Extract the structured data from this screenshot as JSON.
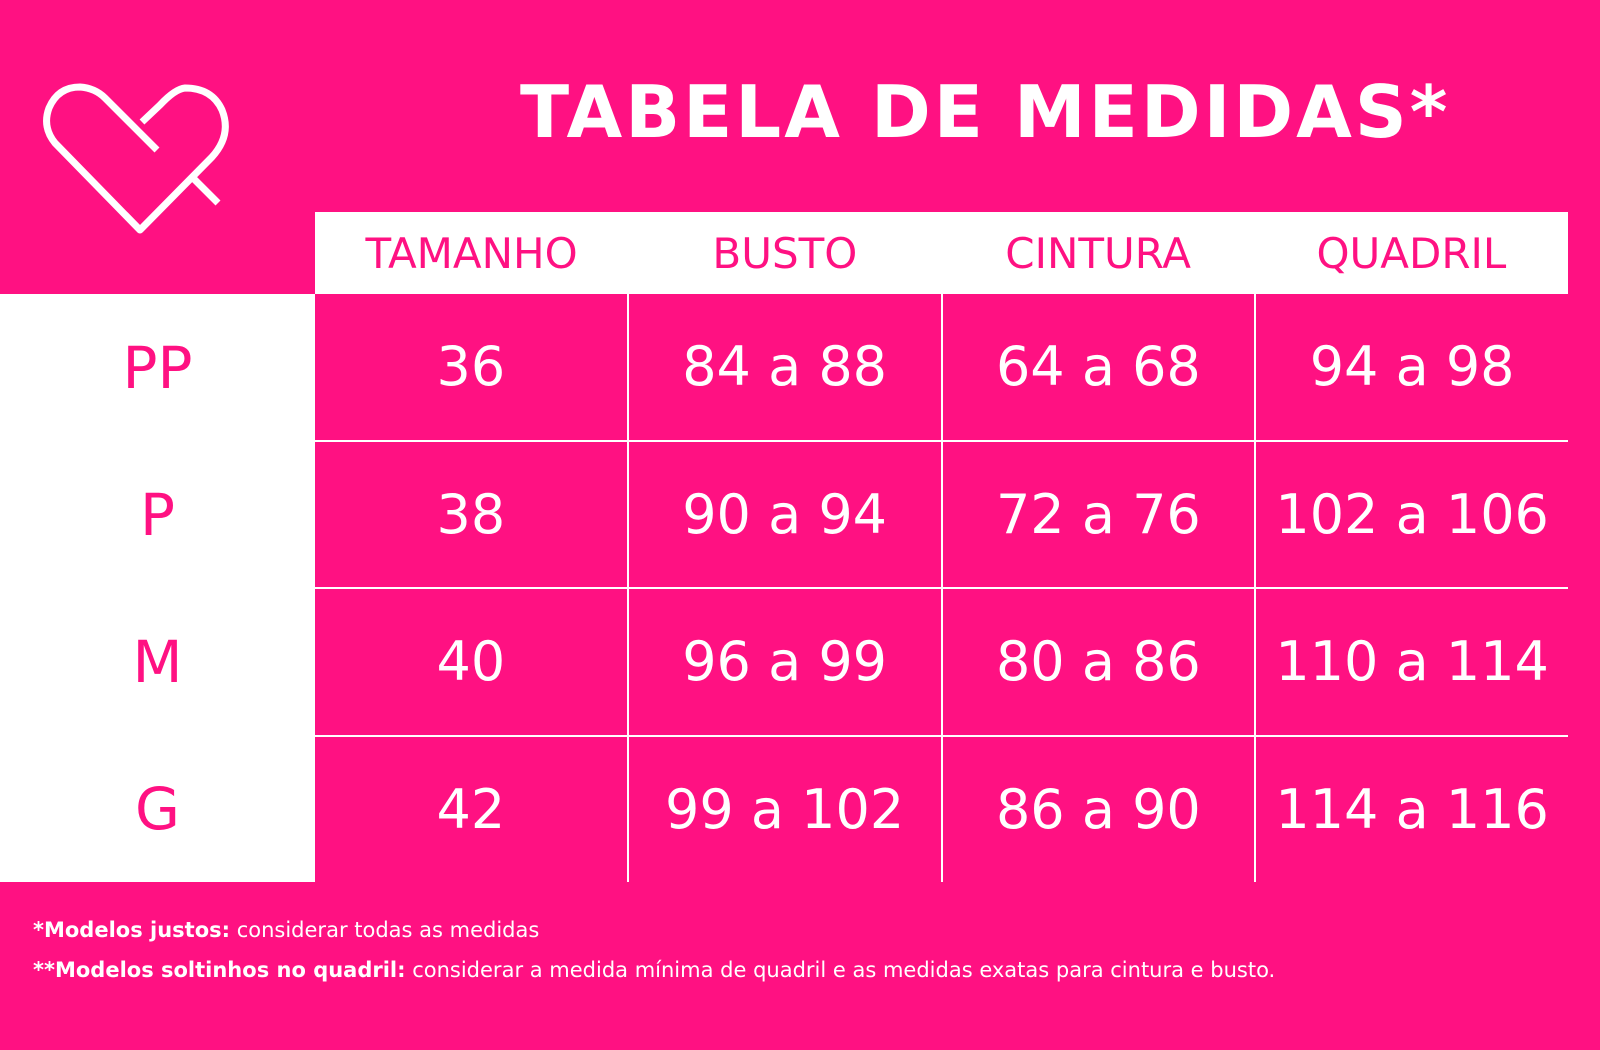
{
  "brand": {
    "logo_icon": "heart-outline-icon",
    "accent_color": "#FF1182"
  },
  "title": "TABELA DE MEDIDAS*",
  "table": {
    "headers": [
      "TAMANHO",
      "BUSTO",
      "CINTURA",
      "QUADRIL"
    ],
    "rows": [
      {
        "size": "PP",
        "values": [
          "36",
          "84 a 88",
          "64 a 68",
          "94 a 98"
        ]
      },
      {
        "size": "P",
        "values": [
          "38",
          "90 a 94",
          "72 a 76",
          "102 a 106"
        ]
      },
      {
        "size": "M",
        "values": [
          "40",
          "96 a 99",
          "80 a 86",
          "110 a 114"
        ]
      },
      {
        "size": "G",
        "values": [
          "42",
          "99 a 102",
          "86 a 90",
          "114 a 116"
        ]
      }
    ]
  },
  "notes": [
    {
      "label": "*Modelos justos:",
      "text": " considerar todas as medidas"
    },
    {
      "label": "**Modelos soltinhos no quadril:",
      "text": " considerar a medida mínima de quadril e as medidas exatas para cintura e busto."
    }
  ]
}
